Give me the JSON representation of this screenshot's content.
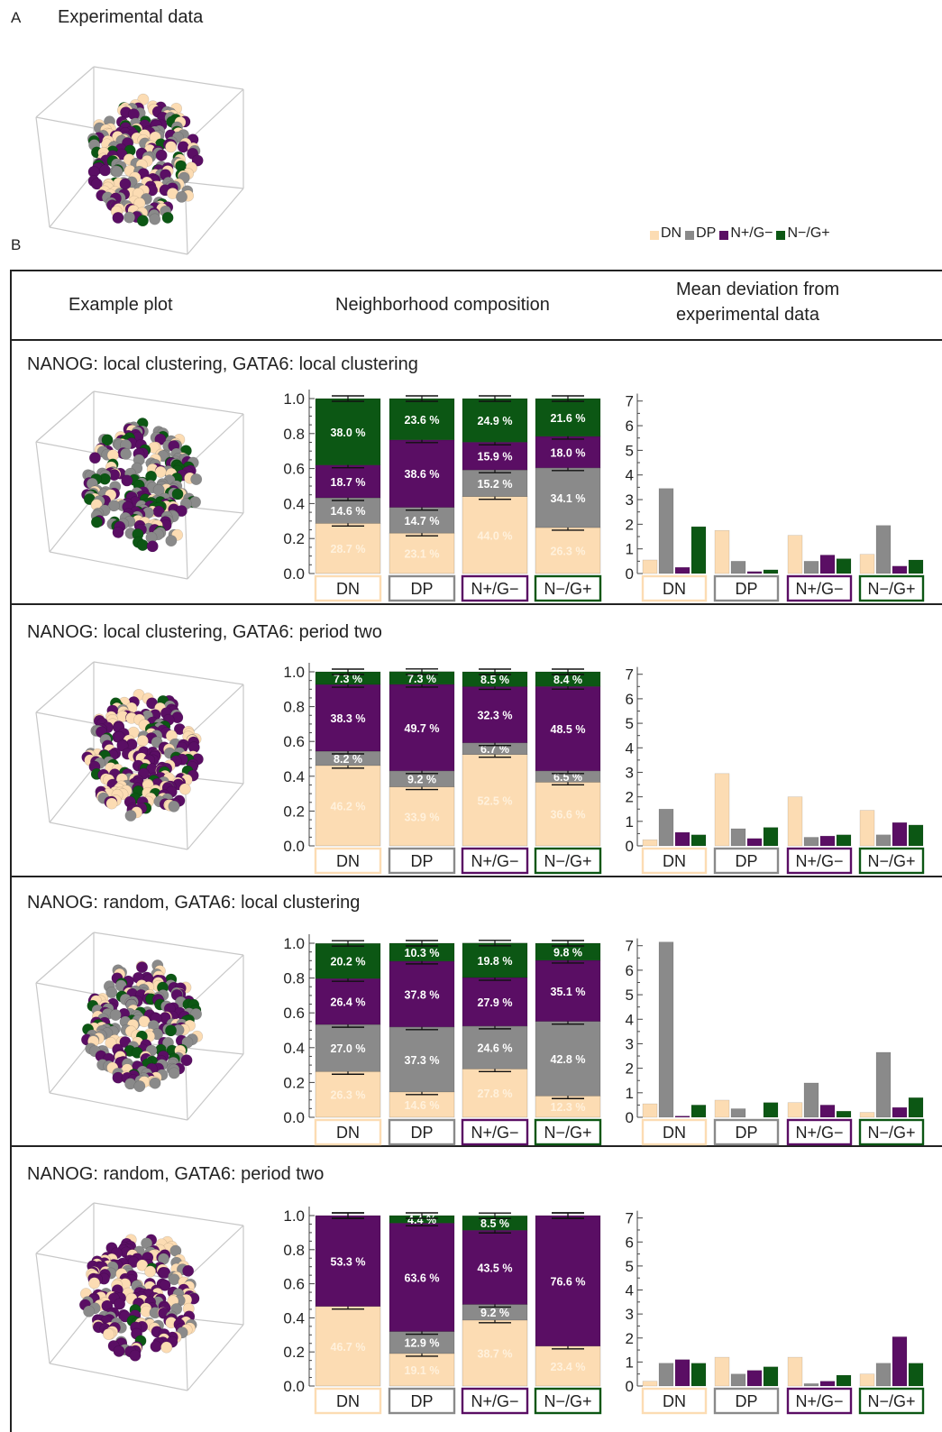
{
  "panel_a": {
    "letter": "A",
    "title": "Experimental data"
  },
  "panel_b": {
    "letter": "B"
  },
  "legend": [
    {
      "label": "DN",
      "color": "#fcdcb3"
    },
    {
      "label": "DP",
      "color": "#8a8a8a"
    },
    {
      "label": "N+/G−",
      "color": "#5a0e64"
    },
    {
      "label": "N−/G+",
      "color": "#0c5714"
    }
  ],
  "table_headers": {
    "example": "Example plot",
    "composition": "Neighborhood composition",
    "deviation_line1": "Mean deviation from",
    "deviation_line2": "experimental data"
  },
  "categories": [
    "DN",
    "DP",
    "N+/G−",
    "N−/G+"
  ],
  "colors": {
    "DN": "#fcdcb3",
    "DP": "#8a8a8a",
    "NG": "#5a0e64",
    "GN": "#0c5714",
    "dn_text": "#fff1dc",
    "frame": "#222222"
  },
  "chart_data": [
    {
      "type": "bar",
      "title": "NANOG: local clustering, GATA6: local clustering",
      "stacked": {
        "ylim": [
          0,
          1
        ],
        "yticks": [
          "0.0",
          "0.2",
          "0.4",
          "0.6",
          "0.8",
          "1.0"
        ],
        "series": [
          {
            "name": "DN",
            "values": [
              0.287,
              0.231,
              0.44,
              0.263
            ],
            "labels": [
              "28.7 %",
              "23.1 %",
              "44.0 %",
              "26.3 %"
            ]
          },
          {
            "name": "DP",
            "values": [
              0.146,
              0.147,
              0.152,
              0.341
            ],
            "labels": [
              "14.6 %",
              "14.7 %",
              "15.2 %",
              "34.1 %"
            ]
          },
          {
            "name": "N+/G−",
            "values": [
              0.187,
              0.386,
              0.159,
              0.18
            ],
            "labels": [
              "18.7 %",
              "38.6 %",
              "15.9 %",
              "18.0 %"
            ]
          },
          {
            "name": "N−/G+",
            "values": [
              0.38,
              0.236,
              0.249,
              0.216
            ],
            "labels": [
              "38.0 %",
              "23.6 %",
              "24.9 %",
              "21.6 %"
            ]
          }
        ]
      },
      "deviation": {
        "ylim": [
          0,
          7.3
        ],
        "yticks": [
          "0",
          "1",
          "2",
          "3",
          "4",
          "5",
          "6",
          "7"
        ],
        "groups": [
          [
            0.55,
            3.45,
            0.25,
            1.9
          ],
          [
            1.75,
            0.5,
            0.08,
            0.15
          ],
          [
            1.55,
            0.5,
            0.75,
            0.6
          ],
          [
            0.78,
            1.95,
            0.3,
            0.55
          ]
        ]
      }
    },
    {
      "type": "bar",
      "title": "NANOG: local clustering, GATA6: period two",
      "stacked": {
        "ylim": [
          0,
          1
        ],
        "yticks": [
          "0.0",
          "0.2",
          "0.4",
          "0.6",
          "0.8",
          "1.0"
        ],
        "series": [
          {
            "name": "DN",
            "values": [
              0.462,
              0.339,
              0.525,
              0.366
            ],
            "labels": [
              "46.2 %",
              "33.9 %",
              "52.5 %",
              "36.6 %"
            ]
          },
          {
            "name": "DP",
            "values": [
              0.082,
              0.092,
              0.067,
              0.065
            ],
            "labels": [
              "8.2 %",
              "9.2 %",
              "6.7 %",
              "6.5 %"
            ]
          },
          {
            "name": "N+/G−",
            "values": [
              0.383,
              0.497,
              0.323,
              0.485
            ],
            "labels": [
              "38.3 %",
              "49.7 %",
              "32.3 %",
              "48.5 %"
            ]
          },
          {
            "name": "N−/G+",
            "values": [
              0.073,
              0.073,
              0.085,
              0.084
            ],
            "labels": [
              "7.3 %",
              "7.3 %",
              "8.5 %",
              "8.4 %"
            ]
          }
        ]
      },
      "deviation": {
        "ylim": [
          0,
          7.3
        ],
        "yticks": [
          "0",
          "1",
          "2",
          "3",
          "4",
          "5",
          "6",
          "7"
        ],
        "groups": [
          [
            0.25,
            1.5,
            0.55,
            0.45
          ],
          [
            2.95,
            0.7,
            0.3,
            0.75
          ],
          [
            2.0,
            0.35,
            0.4,
            0.45
          ],
          [
            1.45,
            0.45,
            0.95,
            0.85
          ]
        ]
      }
    },
    {
      "type": "bar",
      "title": "NANOG: random, GATA6: local clustering",
      "stacked": {
        "ylim": [
          0,
          1
        ],
        "yticks": [
          "0.0",
          "0.2",
          "0.4",
          "0.6",
          "0.8",
          "1.0"
        ],
        "series": [
          {
            "name": "DN",
            "values": [
              0.263,
              0.146,
              0.278,
              0.123
            ],
            "labels": [
              "26.3 %",
              "14.6 %",
              "27.8 %",
              "12.3 %"
            ]
          },
          {
            "name": "DP",
            "values": [
              0.27,
              0.373,
              0.246,
              0.428
            ],
            "labels": [
              "27.0 %",
              "37.3 %",
              "24.6 %",
              "42.8 %"
            ]
          },
          {
            "name": "N+/G−",
            "values": [
              0.264,
              0.378,
              0.279,
              0.351
            ],
            "labels": [
              "26.4 %",
              "37.8 %",
              "27.9 %",
              "35.1 %"
            ]
          },
          {
            "name": "N−/G+",
            "values": [
              0.202,
              0.103,
              0.198,
              0.098
            ],
            "labels": [
              "20.2 %",
              "10.3 %",
              "19.8 %",
              "9.8 %"
            ]
          }
        ]
      },
      "deviation": {
        "ylim": [
          0,
          7.3
        ],
        "yticks": [
          "0",
          "1",
          "2",
          "3",
          "4",
          "5",
          "6",
          "7"
        ],
        "groups": [
          [
            0.55,
            7.15,
            0.05,
            0.5
          ],
          [
            0.7,
            0.35,
            0.0,
            0.6
          ],
          [
            0.6,
            1.4,
            0.5,
            0.25
          ],
          [
            0.2,
            2.65,
            0.4,
            0.8
          ]
        ]
      }
    },
    {
      "type": "bar",
      "title": "NANOG: random, GATA6: period two",
      "stacked": {
        "ylim": [
          0,
          1
        ],
        "yticks": [
          "0.0",
          "0.2",
          "0.4",
          "0.6",
          "0.8",
          "1.0"
        ],
        "series": [
          {
            "name": "DN",
            "values": [
              0.467,
              0.191,
              0.387,
              0.234
            ],
            "labels": [
              "46.7 %",
              "19.1 %",
              "38.7 %",
              "23.4 %"
            ]
          },
          {
            "name": "DP",
            "values": [
              0.0,
              0.129,
              0.092,
              0.0
            ],
            "labels": [
              "",
              "12.9 %",
              "9.2 %",
              ""
            ]
          },
          {
            "name": "N+/G−",
            "values": [
              0.533,
              0.636,
              0.435,
              0.766
            ],
            "labels": [
              "53.3 %",
              "63.6 %",
              "43.5 %",
              "76.6 %"
            ]
          },
          {
            "name": "N−/G+",
            "values": [
              0.0,
              0.044,
              0.085,
              0.0
            ],
            "labels": [
              "",
              "4.4 %",
              "8.5 %",
              ""
            ]
          }
        ]
      },
      "deviation": {
        "ylim": [
          0,
          7.3
        ],
        "yticks": [
          "0",
          "1",
          "2",
          "3",
          "4",
          "5",
          "6",
          "7"
        ],
        "groups": [
          [
            0.2,
            0.95,
            1.1,
            0.95
          ],
          [
            1.2,
            0.5,
            0.65,
            0.8
          ],
          [
            1.2,
            0.1,
            0.2,
            0.45
          ],
          [
            0.5,
            0.95,
            2.05,
            0.95
          ]
        ]
      }
    }
  ]
}
